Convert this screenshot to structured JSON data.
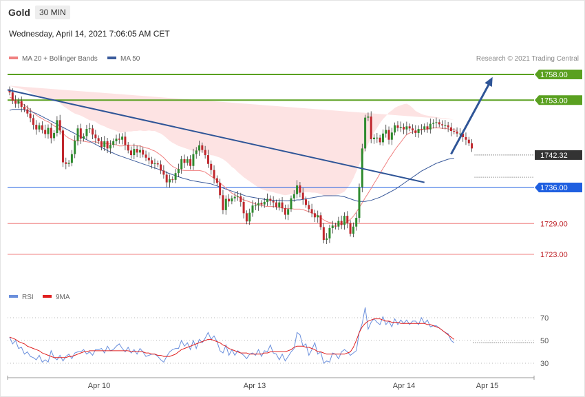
{
  "header": {
    "instrument": "Gold",
    "timeframe": "30 MIN",
    "datetime": "Wednesday, April 14, 2021 7:06:05 AM CET"
  },
  "legend": {
    "ma20_label": "MA 20 + Bollinger Bands",
    "ma50_label": "MA 50",
    "credit": "Research © 2021 Trading Central",
    "rsi_label": "RSI",
    "ma9_label": "9MA"
  },
  "colors": {
    "candle_up": "#2e8b2e",
    "candle_down": "#c0272d",
    "ma20": "#f08080",
    "bollinger_fill": "#fde3e3",
    "ma50": "#3a5a9b",
    "resistance": "#5aa020",
    "pivot": "#1f5fe0",
    "support": "#f08080",
    "last_price_tag": "#333333",
    "trendline": "#2f5597",
    "rsi": "#6a8fdc",
    "rsi_ma": "#e02020"
  },
  "chart_data": [
    {
      "type": "candlestick",
      "x_labels": [
        "Apr 10",
        "Apr 13",
        "Apr 14",
        "Apr 15"
      ],
      "y_range": [
        1713,
        1762
      ],
      "levels": [
        {
          "label": "1758.00",
          "value": 1758.0,
          "kind": "resistance"
        },
        {
          "label": "1753.00",
          "value": 1753.0,
          "kind": "resistance"
        },
        {
          "label": "1742.32",
          "value": 1742.32,
          "kind": "last_price"
        },
        {
          "label": "1736.00",
          "value": 1736.0,
          "kind": "pivot"
        },
        {
          "label": "1729.00",
          "value": 1729.0,
          "kind": "support"
        },
        {
          "label": "1723.00",
          "value": 1723.0,
          "kind": "support"
        }
      ],
      "close": [
        1754.5,
        1752.9,
        1752.3,
        1752.8,
        1751.7,
        1751.2,
        1750.4,
        1749.5,
        1748.2,
        1747.3,
        1748.1,
        1747.2,
        1746.4,
        1747.6,
        1745.6,
        1746.6,
        1749.1,
        1747.1,
        1740.9,
        1740.6,
        1740.8,
        1742.5,
        1745.1,
        1747.5,
        1745.5,
        1746.0,
        1747.4,
        1747.5,
        1746.3,
        1745.6,
        1745.0,
        1743.9,
        1745.0,
        1743.6,
        1744.3,
        1745.0,
        1745.5,
        1745.3,
        1745.9,
        1744.3,
        1743.2,
        1742.3,
        1743.5,
        1742.8,
        1743.3,
        1742.4,
        1741.8,
        1741.3,
        1740.6,
        1740.7,
        1740.5,
        1739.3,
        1738.5,
        1737.0,
        1737.6,
        1737.5,
        1738.8,
        1739.6,
        1741.5,
        1740.8,
        1741.5,
        1740.2,
        1742.5,
        1743.2,
        1744.2,
        1743.3,
        1742.3,
        1740.6,
        1739.4,
        1737.8,
        1736.9,
        1734.5,
        1731.6,
        1733.8,
        1733.3,
        1733.9,
        1734.2,
        1734.3,
        1733.2,
        1731.0,
        1729.4,
        1731.1,
        1732.5,
        1732.5,
        1733.0,
        1732.7,
        1733.2,
        1733.8,
        1733.4,
        1733.1,
        1732.2,
        1733.1,
        1732.0,
        1730.7,
        1731.8,
        1733.9,
        1734.7,
        1736.4,
        1735.0,
        1733.7,
        1732.6,
        1731.8,
        1731.0,
        1730.2,
        1730.6,
        1728.3,
        1725.8,
        1726.1,
        1728.1,
        1728.6,
        1728.4,
        1729.5,
        1728.7,
        1730.5,
        1729.1,
        1727.0,
        1728.4,
        1730.1,
        1736.1,
        1743.6,
        1749.6,
        1749.8,
        1745.4,
        1745.7,
        1745.7,
        1744.8,
        1746.5,
        1747.2,
        1745.3,
        1746.7,
        1748.1,
        1747.6,
        1747.8,
        1747.3,
        1747.9,
        1747.5,
        1747.1,
        1746.6,
        1747.4,
        1747.3,
        1747.9,
        1747.3,
        1748.4,
        1748.6,
        1748.7,
        1748.3,
        1748.1,
        1748.1,
        1747.7,
        1747.0,
        1746.9,
        1746.5,
        1746.5,
        1745.8,
        1745.3,
        1744.6,
        1743.6
      ],
      "ma20": [
        1753.6,
        1753.3,
        1753.0,
        1752.7,
        1752.4,
        1752.0,
        1751.6,
        1751.1,
        1750.6,
        1750.1,
        1749.7,
        1749.4,
        1749.0,
        1748.8,
        1748.4,
        1748.0,
        1747.7,
        1747.1,
        1746.5,
        1746.0,
        1745.6,
        1745.3,
        1745.1,
        1745.1,
        1745.1,
        1745.0,
        1744.9,
        1744.8,
        1744.9,
        1744.9,
        1744.7,
        1744.6,
        1744.6,
        1744.5,
        1744.5,
        1744.4,
        1744.3,
        1744.1,
        1744.1,
        1744.2,
        1744.3,
        1744.2,
        1744.2,
        1744.1,
        1744.1,
        1743.9,
        1743.7,
        1743.6,
        1743.3,
        1743.1,
        1742.7,
        1742.3,
        1741.8,
        1741.2,
        1740.6,
        1740.1,
        1739.8,
        1739.5,
        1739.4,
        1739.3,
        1739.3,
        1739.3,
        1739.3,
        1739.3,
        1739.3,
        1739.2,
        1739.0,
        1738.6,
        1738.2,
        1737.8,
        1737.4,
        1736.9,
        1736.4,
        1735.9,
        1735.4,
        1734.9,
        1734.6,
        1734.2,
        1733.9,
        1733.6,
        1733.4,
        1733.2,
        1733.0,
        1732.8,
        1732.6,
        1732.5,
        1732.4,
        1732.3,
        1732.3,
        1732.3,
        1732.2,
        1732.1,
        1732.0,
        1731.9,
        1731.9,
        1731.9,
        1731.8,
        1731.8,
        1731.8,
        1731.7,
        1731.5,
        1731.3,
        1731.0,
        1730.8,
        1730.5,
        1730.1,
        1729.7,
        1729.4,
        1729.2,
        1729.1,
        1728.9,
        1728.9,
        1728.9,
        1729.0,
        1729.4,
        1729.8,
        1730.4,
        1731.2,
        1732.1,
        1733.0,
        1734.0,
        1734.9,
        1735.8,
        1736.8,
        1737.7,
        1738.7,
        1739.7,
        1740.6,
        1741.6,
        1742.4,
        1743.3,
        1744.1,
        1744.8,
        1745.6,
        1746.3,
        1746.6,
        1746.8,
        1746.9,
        1747.1,
        1747.2,
        1747.3,
        1747.4,
        1747.5,
        1747.6,
        1747.6,
        1747.6,
        1747.5,
        1747.5,
        1747.4,
        1747.3,
        1747.2,
        1747.1
      ],
      "ma50": [
        1751.0,
        1751.2,
        1751.2,
        1751.2,
        1751.2,
        1751.1,
        1751.0,
        1750.8,
        1750.6,
        1750.4,
        1750.1,
        1749.8,
        1749.5,
        1749.2,
        1748.9,
        1748.6,
        1748.3,
        1748.0,
        1747.7,
        1747.4,
        1747.1,
        1746.8,
        1746.5,
        1746.2,
        1745.9,
        1745.6,
        1745.3,
        1745.0,
        1744.7,
        1744.4,
        1744.1,
        1743.8,
        1743.5,
        1743.2,
        1742.9,
        1742.7,
        1742.4,
        1742.2,
        1742.0,
        1741.8,
        1741.6,
        1741.4,
        1741.2,
        1741.0,
        1740.8,
        1740.6,
        1740.4,
        1740.2,
        1740.0,
        1739.8,
        1739.6,
        1739.4,
        1739.2,
        1738.9,
        1738.7,
        1738.5,
        1738.3,
        1738.1,
        1737.9,
        1737.7,
        1737.6,
        1737.4,
        1737.3,
        1737.2,
        1737.1,
        1737.0,
        1736.9,
        1736.8,
        1736.7,
        1736.5,
        1736.3,
        1736.1,
        1735.9,
        1735.7,
        1735.5,
        1735.3,
        1735.1,
        1734.9,
        1734.7,
        1734.5,
        1734.3,
        1734.2,
        1734.1,
        1734.0,
        1733.9,
        1733.8,
        1733.7,
        1733.6,
        1733.6,
        1733.5,
        1733.5,
        1733.5,
        1733.4,
        1733.4,
        1733.4,
        1733.5,
        1733.5,
        1733.6,
        1733.6,
        1733.7,
        1733.8,
        1733.9,
        1734.0,
        1734.1,
        1734.2,
        1734.3,
        1734.4,
        1734.4,
        1734.4,
        1734.4,
        1734.4,
        1734.4,
        1734.3,
        1734.2,
        1734.0,
        1733.8,
        1733.6,
        1733.4,
        1733.3,
        1733.3,
        1733.3,
        1733.4,
        1733.5,
        1733.7,
        1733.9,
        1734.1,
        1734.4,
        1734.7,
        1735.0,
        1735.3,
        1735.6,
        1736.0,
        1736.4,
        1736.8,
        1737.2,
        1737.6,
        1738.0,
        1738.4,
        1738.8,
        1739.2,
        1739.5,
        1739.8,
        1740.1,
        1740.4,
        1740.7,
        1740.9,
        1741.1,
        1741.3,
        1741.5,
        1741.6,
        1741.7
      ],
      "bollinger_band_width": [
        2.2,
        2.3,
        2.4,
        2.6,
        2.8,
        3.0,
        3.2,
        3.4,
        3.6,
        3.8,
        4.0,
        4.2,
        4.4,
        4.6,
        4.8,
        5.0,
        5.2,
        5.3,
        5.4,
        5.5,
        5.5,
        5.4,
        5.3,
        5.1,
        4.9,
        4.7,
        4.5,
        4.3,
        4.1,
        3.9,
        3.7,
        3.5,
        3.3,
        3.1,
        2.9,
        2.8,
        2.7,
        2.6,
        2.6,
        2.6,
        2.6,
        2.7,
        2.8,
        2.9,
        3.0,
        3.1,
        3.3,
        3.5,
        3.7,
        3.9,
        4.0,
        4.2,
        4.3,
        4.4,
        4.5,
        4.6,
        4.6,
        4.6,
        4.5,
        4.4,
        4.2,
        4.0,
        3.8,
        3.7,
        3.6,
        3.6,
        3.7,
        3.9,
        4.1,
        4.4,
        4.6,
        4.9,
        5.1,
        5.2,
        5.2,
        5.1,
        5.0,
        4.8,
        4.6,
        4.4,
        4.2,
        4.0,
        3.8,
        3.6,
        3.4,
        3.2,
        3.1,
        3.0,
        2.9,
        2.8,
        2.7,
        2.7,
        2.6,
        2.6,
        2.7,
        2.8,
        2.9,
        3.0,
        3.2,
        3.4,
        3.6,
        3.8,
        4.0,
        4.2,
        4.4,
        4.6,
        4.8,
        5.0,
        5.2,
        5.4,
        5.6,
        5.8,
        6.0,
        6.2,
        6.5,
        6.9,
        7.4,
        7.9,
        8.4,
        8.9,
        9.3,
        9.6,
        9.8,
        9.9,
        9.9,
        9.8,
        9.6,
        9.3,
        9.0,
        8.6,
        8.2,
        7.7,
        7.2,
        6.6,
        6.0,
        5.4,
        4.7,
        4.0,
        3.5,
        3.1,
        2.8,
        2.6,
        2.4,
        2.2,
        2.1,
        2.0,
        2.0,
        2.0,
        2.0,
        2.0,
        2.0
      ],
      "trendline": {
        "from": [
          0,
          1755.0
        ],
        "to": [
          140,
          1737.0
        ]
      },
      "forecast_arrow": {
        "from": [
          149,
          1742.5
        ],
        "to": [
          163,
          1757.5
        ]
      }
    },
    {
      "type": "line",
      "name": "RSI panel",
      "y_ticks": [
        "70",
        "50",
        "30"
      ],
      "y_range": [
        20,
        85
      ],
      "rsi": [
        53,
        47,
        50,
        43,
        44,
        38,
        40,
        36,
        35,
        33,
        37,
        31,
        33,
        31,
        41,
        35,
        33,
        37,
        32,
        36,
        38,
        34,
        39,
        40,
        40,
        42,
        38,
        40,
        37,
        42,
        42,
        43,
        39,
        45,
        41,
        42,
        45,
        47,
        43,
        40,
        44,
        39,
        42,
        38,
        43,
        40,
        36,
        37,
        38,
        38,
        36,
        33,
        31,
        36,
        40,
        42,
        43,
        43,
        50,
        45,
        48,
        42,
        50,
        43,
        51,
        48,
        52,
        57,
        51,
        54,
        49,
        41,
        39,
        46,
        37,
        42,
        37,
        41,
        39,
        37,
        34,
        38,
        39,
        37,
        42,
        36,
        41,
        40,
        46,
        39,
        38,
        33,
        38,
        32,
        36,
        40,
        43,
        57,
        55,
        45,
        47,
        37,
        42,
        48,
        38,
        40,
        30,
        32,
        31,
        39,
        38,
        34,
        40,
        42,
        40,
        37,
        39,
        41,
        57,
        65,
        79,
        60,
        66,
        69,
        66,
        64,
        71,
        64,
        67,
        62,
        69,
        64,
        68,
        65,
        68,
        64,
        67,
        67,
        64,
        70,
        65,
        68,
        62,
        63,
        63,
        61,
        59,
        57,
        56,
        50,
        48
      ],
      "rsi_ma": [
        53,
        52,
        51,
        49,
        48,
        47,
        45,
        44,
        43,
        42,
        41,
        39,
        38,
        37,
        36,
        35,
        35,
        35,
        35,
        35,
        36,
        36,
        37,
        38,
        39,
        40,
        40,
        41,
        41,
        41,
        41,
        41,
        41,
        41,
        41,
        41,
        41,
        41,
        41,
        41,
        41,
        40,
        40,
        40,
        40,
        40,
        39,
        39,
        38,
        38,
        37,
        37,
        36,
        36,
        36,
        37,
        38,
        40,
        42,
        43,
        44,
        45,
        46,
        47,
        48,
        49,
        50,
        51,
        51,
        50,
        49,
        48,
        46,
        45,
        43,
        42,
        41,
        40,
        39,
        39,
        39,
        38,
        38,
        38,
        38,
        38,
        39,
        39,
        40,
        40,
        40,
        40,
        40,
        40,
        41,
        42,
        44,
        45,
        45,
        45,
        44,
        44,
        43,
        42,
        40,
        40,
        39,
        38,
        38,
        38,
        38,
        38,
        38,
        38,
        39,
        40,
        44,
        50,
        57,
        62,
        65,
        67,
        68,
        69,
        69,
        69,
        68,
        67,
        67,
        66,
        66,
        66,
        65,
        65,
        65,
        65,
        65,
        65,
        65,
        65,
        65,
        64,
        64,
        63,
        62,
        61,
        59,
        57,
        55,
        53,
        51
      ]
    }
  ]
}
